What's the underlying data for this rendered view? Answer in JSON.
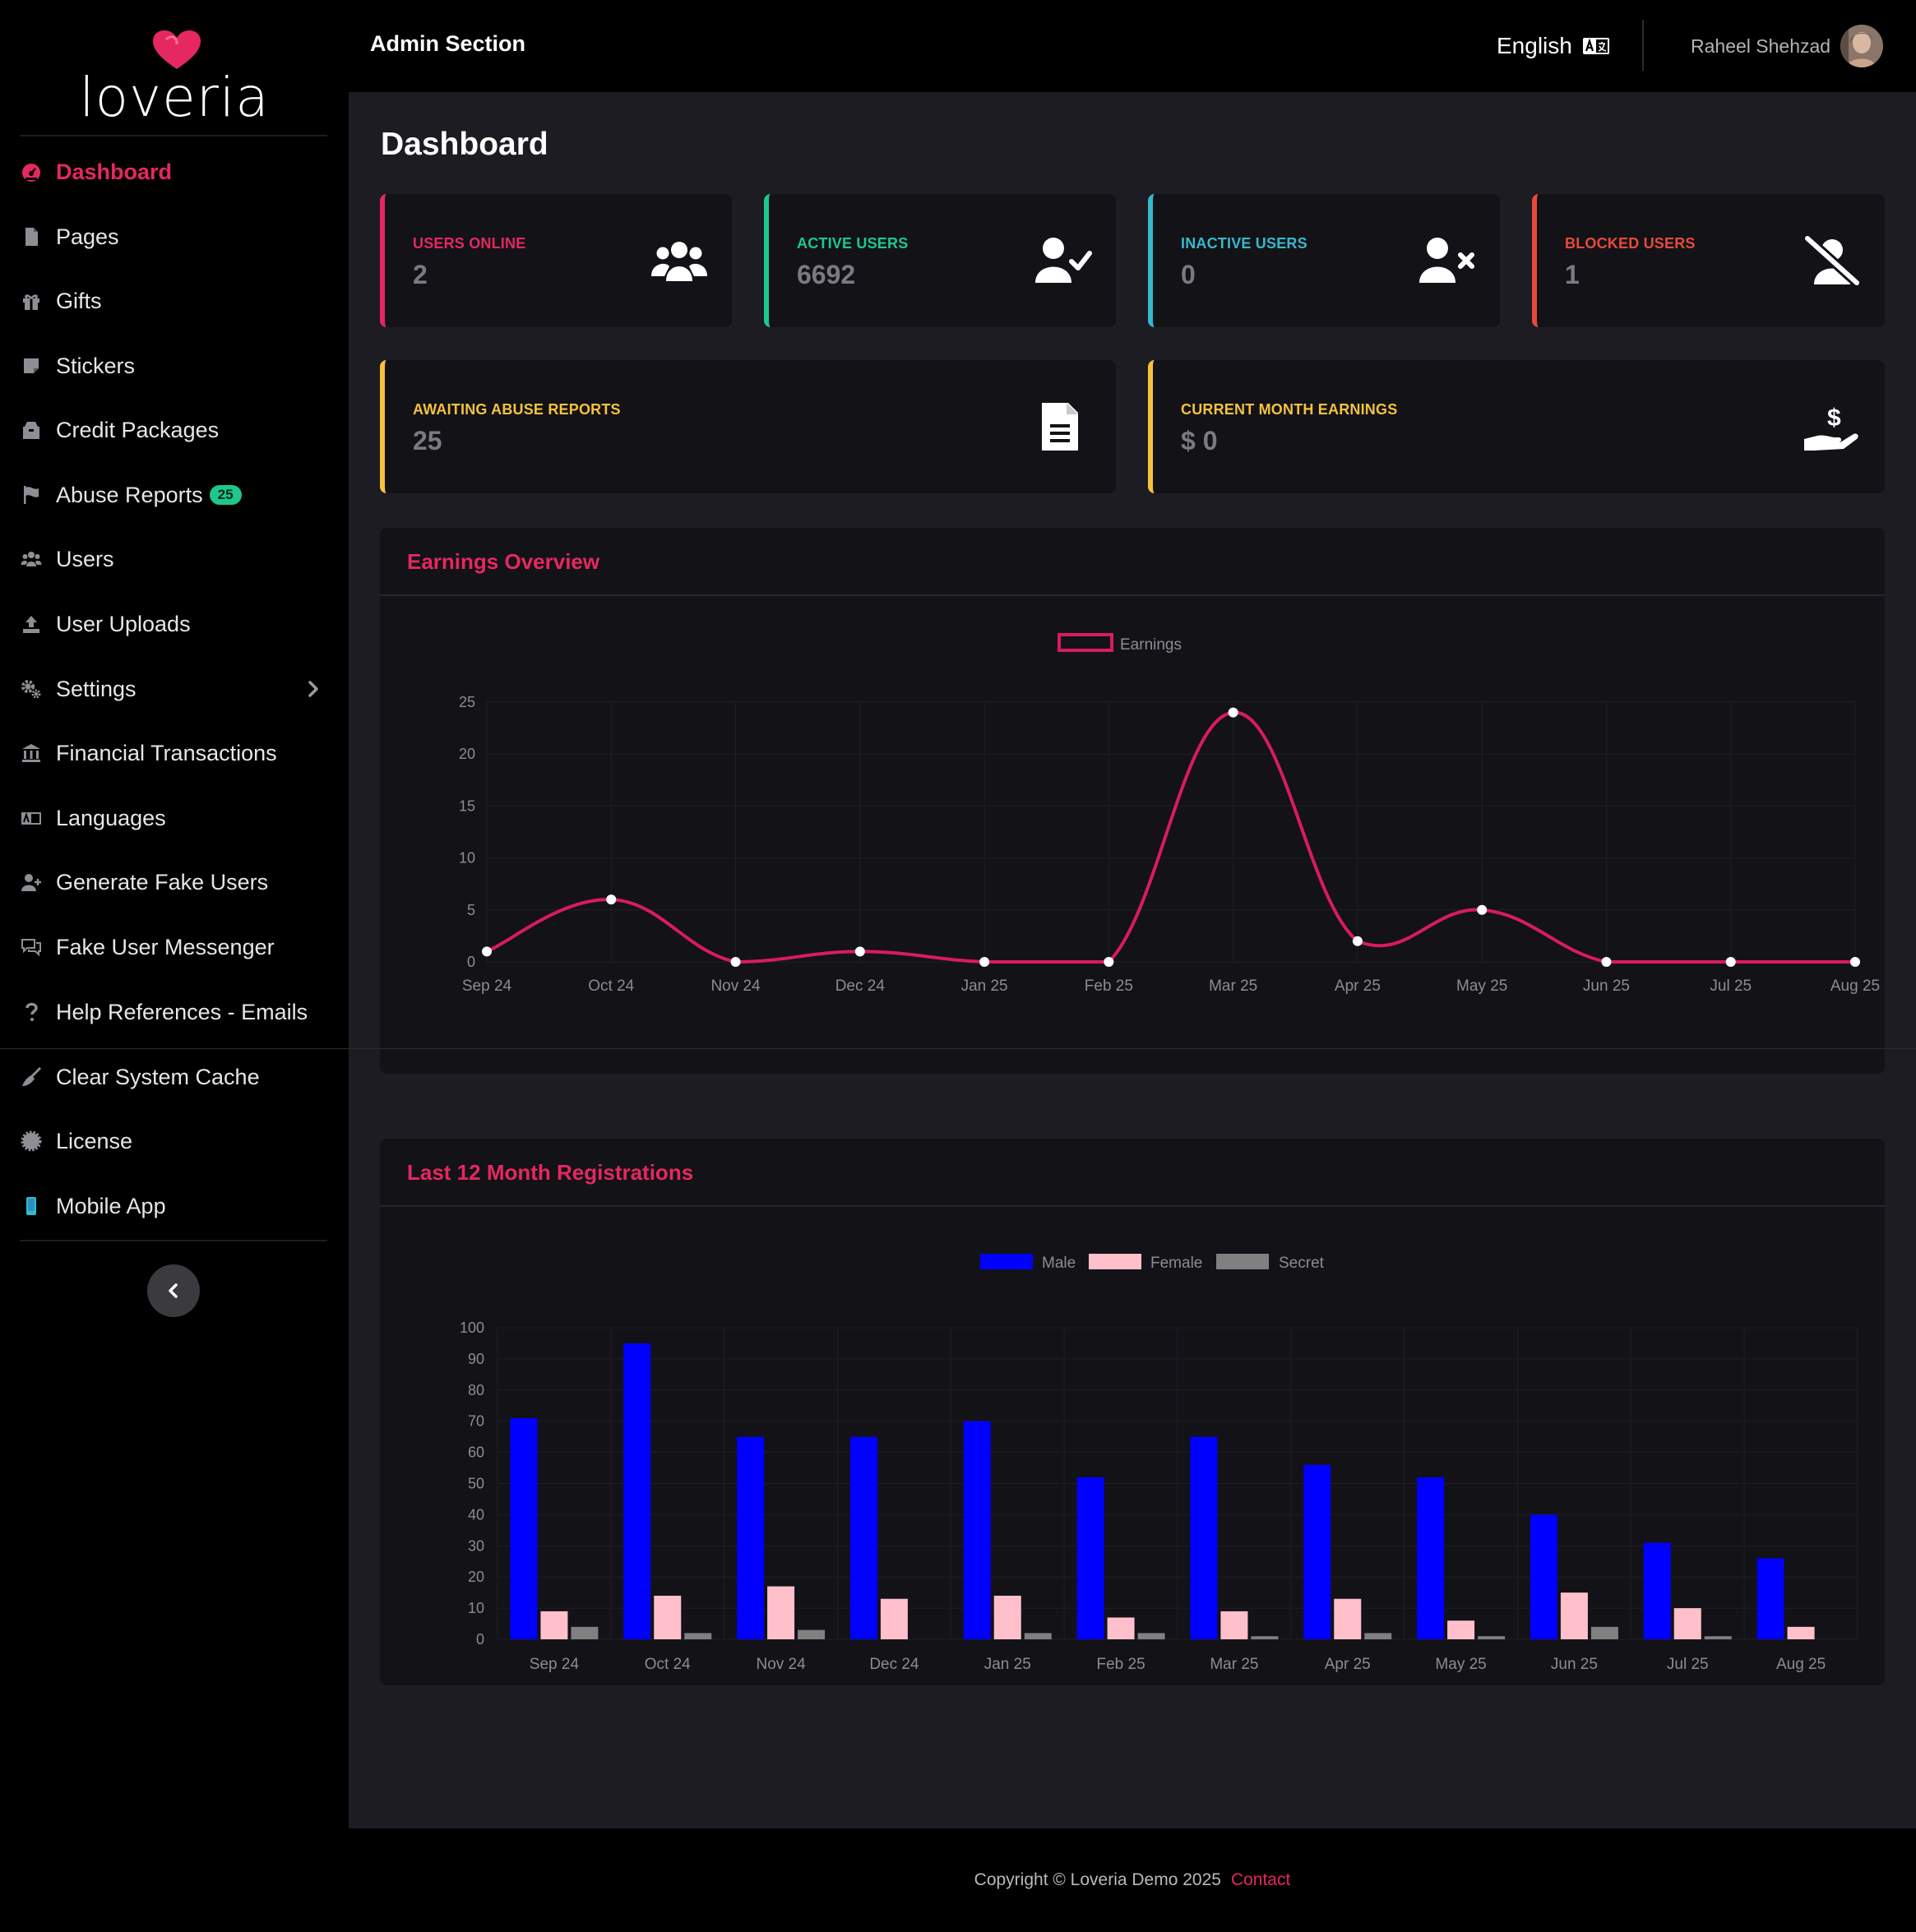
{
  "brand": {
    "name": "loveria",
    "accent": "#e5285f"
  },
  "topbar": {
    "title": "Admin Section",
    "language": "English",
    "language_icon": "language-icon",
    "user_name": "Raheel Shehzad"
  },
  "sidebar": {
    "items": [
      {
        "label": "Dashboard",
        "icon": "dashboard-icon",
        "active": true
      },
      {
        "label": "Pages",
        "icon": "file-icon"
      },
      {
        "label": "Gifts",
        "icon": "gift-icon"
      },
      {
        "label": "Stickers",
        "icon": "sticker-icon"
      },
      {
        "label": "Credit Packages",
        "icon": "box-icon"
      },
      {
        "label": "Abuse Reports",
        "icon": "flag-icon",
        "badge": "25"
      },
      {
        "label": "Users",
        "icon": "users-icon"
      },
      {
        "label": "User Uploads",
        "icon": "upload-icon"
      },
      {
        "label": "Settings",
        "icon": "cogs-icon",
        "has_submenu": true
      },
      {
        "label": "Financial Transactions",
        "icon": "bank-icon"
      },
      {
        "label": "Languages",
        "icon": "language-icon"
      },
      {
        "label": "Generate Fake Users",
        "icon": "user-plus-icon"
      },
      {
        "label": "Fake User Messenger",
        "icon": "comments-icon"
      },
      {
        "label": "Help References - Emails",
        "icon": "question-icon"
      },
      {
        "label": "Clear System Cache",
        "icon": "broom-icon"
      },
      {
        "label": "License",
        "icon": "certificate-icon"
      },
      {
        "label": "Mobile App",
        "icon": "mobile-icon"
      }
    ]
  },
  "main": {
    "title": "Dashboard",
    "stats": [
      {
        "label": "Users Online",
        "value": "2",
        "color": "#e5285f",
        "icon": "users-icon"
      },
      {
        "label": "Active Users",
        "value": "6692",
        "color": "#1cc88a",
        "icon": "user-check-icon"
      },
      {
        "label": "Inactive Users",
        "value": "0",
        "color": "#36b9cc",
        "icon": "user-times-icon"
      },
      {
        "label": "Blocked Users",
        "value": "1",
        "color": "#e74a3b",
        "icon": "user-slash-icon"
      },
      {
        "label": "Awaiting Abuse Reports",
        "value": "25",
        "color": "#f6c23e",
        "icon": "file-alt-icon"
      },
      {
        "label": "Current Month Earnings",
        "value": "$ 0",
        "color": "#f6c23e",
        "icon": "hand-dollar-icon"
      }
    ],
    "earnings_panel": {
      "title": "Earnings Overview"
    },
    "registrations_panel": {
      "title": "Last 12 Month Registrations"
    }
  },
  "chart_data": [
    {
      "type": "line",
      "title": "Earnings Overview",
      "categories": [
        "Sep 24",
        "Oct 24",
        "Nov 24",
        "Dec 24",
        "Jan 25",
        "Feb 25",
        "Mar 25",
        "Apr 25",
        "May 25",
        "Jun 25",
        "Jul 25",
        "Aug 25"
      ],
      "series": [
        {
          "name": "Earnings",
          "values": [
            1,
            6,
            0,
            1,
            0,
            0,
            24,
            2,
            5,
            0,
            0,
            0
          ],
          "color": "#d81b60"
        }
      ],
      "ylim": [
        0,
        25
      ],
      "yticks": [
        0,
        5,
        10,
        15,
        20,
        25
      ],
      "legend": "top-center",
      "grid": true
    },
    {
      "type": "bar",
      "title": "Last 12 Month Registrations",
      "categories": [
        "Sep 24",
        "Oct 24",
        "Nov 24",
        "Dec 24",
        "Jan 25",
        "Feb 25",
        "Mar 25",
        "Apr 25",
        "May 25",
        "Jun 25",
        "Jul 25",
        "Aug 25"
      ],
      "series": [
        {
          "name": "Male",
          "values": [
            71,
            95,
            65,
            65,
            70,
            52,
            65,
            56,
            52,
            40,
            31,
            26
          ],
          "color": "#0000ff"
        },
        {
          "name": "Female",
          "values": [
            9,
            14,
            17,
            13,
            14,
            7,
            9,
            13,
            6,
            15,
            10,
            4
          ],
          "color": "#ffc0cb"
        },
        {
          "name": "Secret",
          "values": [
            4,
            2,
            3,
            0,
            2,
            2,
            1,
            2,
            1,
            4,
            1,
            0
          ],
          "color": "#808080"
        }
      ],
      "ylim": [
        0,
        100
      ],
      "yticks": [
        0,
        10,
        20,
        30,
        40,
        50,
        60,
        70,
        80,
        90,
        100
      ],
      "legend": "top-center",
      "grid": true
    }
  ],
  "footer": {
    "copyright": "Copyright © Loveria Demo 2025",
    "contact_label": "Contact"
  }
}
